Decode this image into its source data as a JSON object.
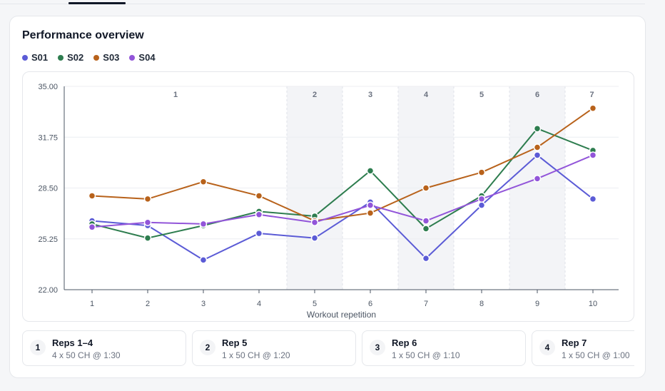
{
  "card": {
    "title": "Performance overview"
  },
  "colors": {
    "S01": "#5b5bd6",
    "S02": "#2e7d4f",
    "S03": "#b8621b",
    "S04": "#9255d9"
  },
  "chart_data": {
    "type": "line",
    "title": "Performance overview",
    "xlabel": "Workout repetition",
    "ylabel": "",
    "x": [
      1,
      2,
      3,
      4,
      5,
      6,
      7,
      8,
      9,
      10
    ],
    "ylim": [
      22.0,
      35.0
    ],
    "yticks": [
      "22.00",
      "25.25",
      "28.50",
      "31.75",
      "35.00"
    ],
    "grid": true,
    "legend_position": "top-left",
    "bands": [
      {
        "label": "1",
        "from": 1,
        "to": 4,
        "shaded": false
      },
      {
        "label": "2",
        "from": 5,
        "to": 5,
        "shaded": true
      },
      {
        "label": "3",
        "from": 6,
        "to": 6,
        "shaded": false
      },
      {
        "label": "4",
        "from": 7,
        "to": 7,
        "shaded": true
      },
      {
        "label": "5",
        "from": 8,
        "to": 8,
        "shaded": false
      },
      {
        "label": "6",
        "from": 9,
        "to": 9,
        "shaded": true
      },
      {
        "label": "7",
        "from": 10,
        "to": 10,
        "shaded": false
      }
    ],
    "series": [
      {
        "name": "S01",
        "color": "#5b5bd6",
        "values": [
          26.4,
          26.1,
          23.9,
          25.6,
          25.3,
          27.6,
          24.0,
          27.4,
          30.6,
          27.8
        ]
      },
      {
        "name": "S02",
        "color": "#2e7d4f",
        "values": [
          26.2,
          25.3,
          26.1,
          27.0,
          26.7,
          29.6,
          25.9,
          28.0,
          32.3,
          30.9
        ]
      },
      {
        "name": "S03",
        "color": "#b8621b",
        "values": [
          28.0,
          27.8,
          28.9,
          28.0,
          26.4,
          26.9,
          28.5,
          29.5,
          31.1,
          33.6
        ]
      },
      {
        "name": "S04",
        "color": "#9255d9",
        "values": [
          26.0,
          26.3,
          26.2,
          26.8,
          26.3,
          27.4,
          26.4,
          27.8,
          29.1,
          30.6
        ]
      }
    ]
  },
  "reps": [
    {
      "num": "1",
      "title": "Reps 1–4",
      "sub": "4 x 50 CH @ 1:30"
    },
    {
      "num": "2",
      "title": "Rep 5",
      "sub": "1 x 50 CH @ 1:20"
    },
    {
      "num": "3",
      "title": "Rep 6",
      "sub": "1 x 50 CH @ 1:10"
    },
    {
      "num": "4",
      "title": "Rep 7",
      "sub": "1 x 50 CH @ 1:00"
    }
  ]
}
